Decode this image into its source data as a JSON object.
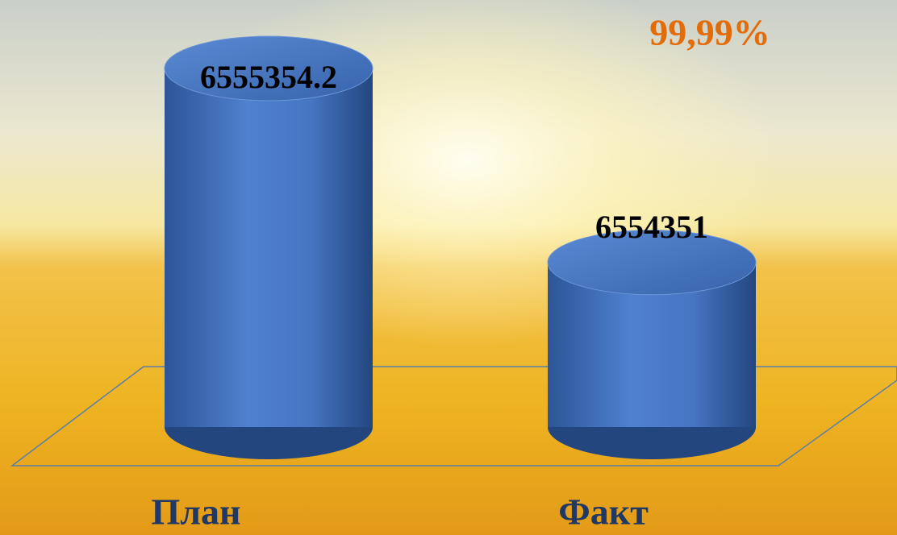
{
  "chart_data": {
    "type": "bar3d",
    "annotation": "99,99%",
    "categories": [
      "План",
      "Факт"
    ],
    "values": [
      6555354.2,
      6554351
    ],
    "color": "#3f6fbf",
    "ylim": [
      6553500,
      6555500
    ]
  }
}
